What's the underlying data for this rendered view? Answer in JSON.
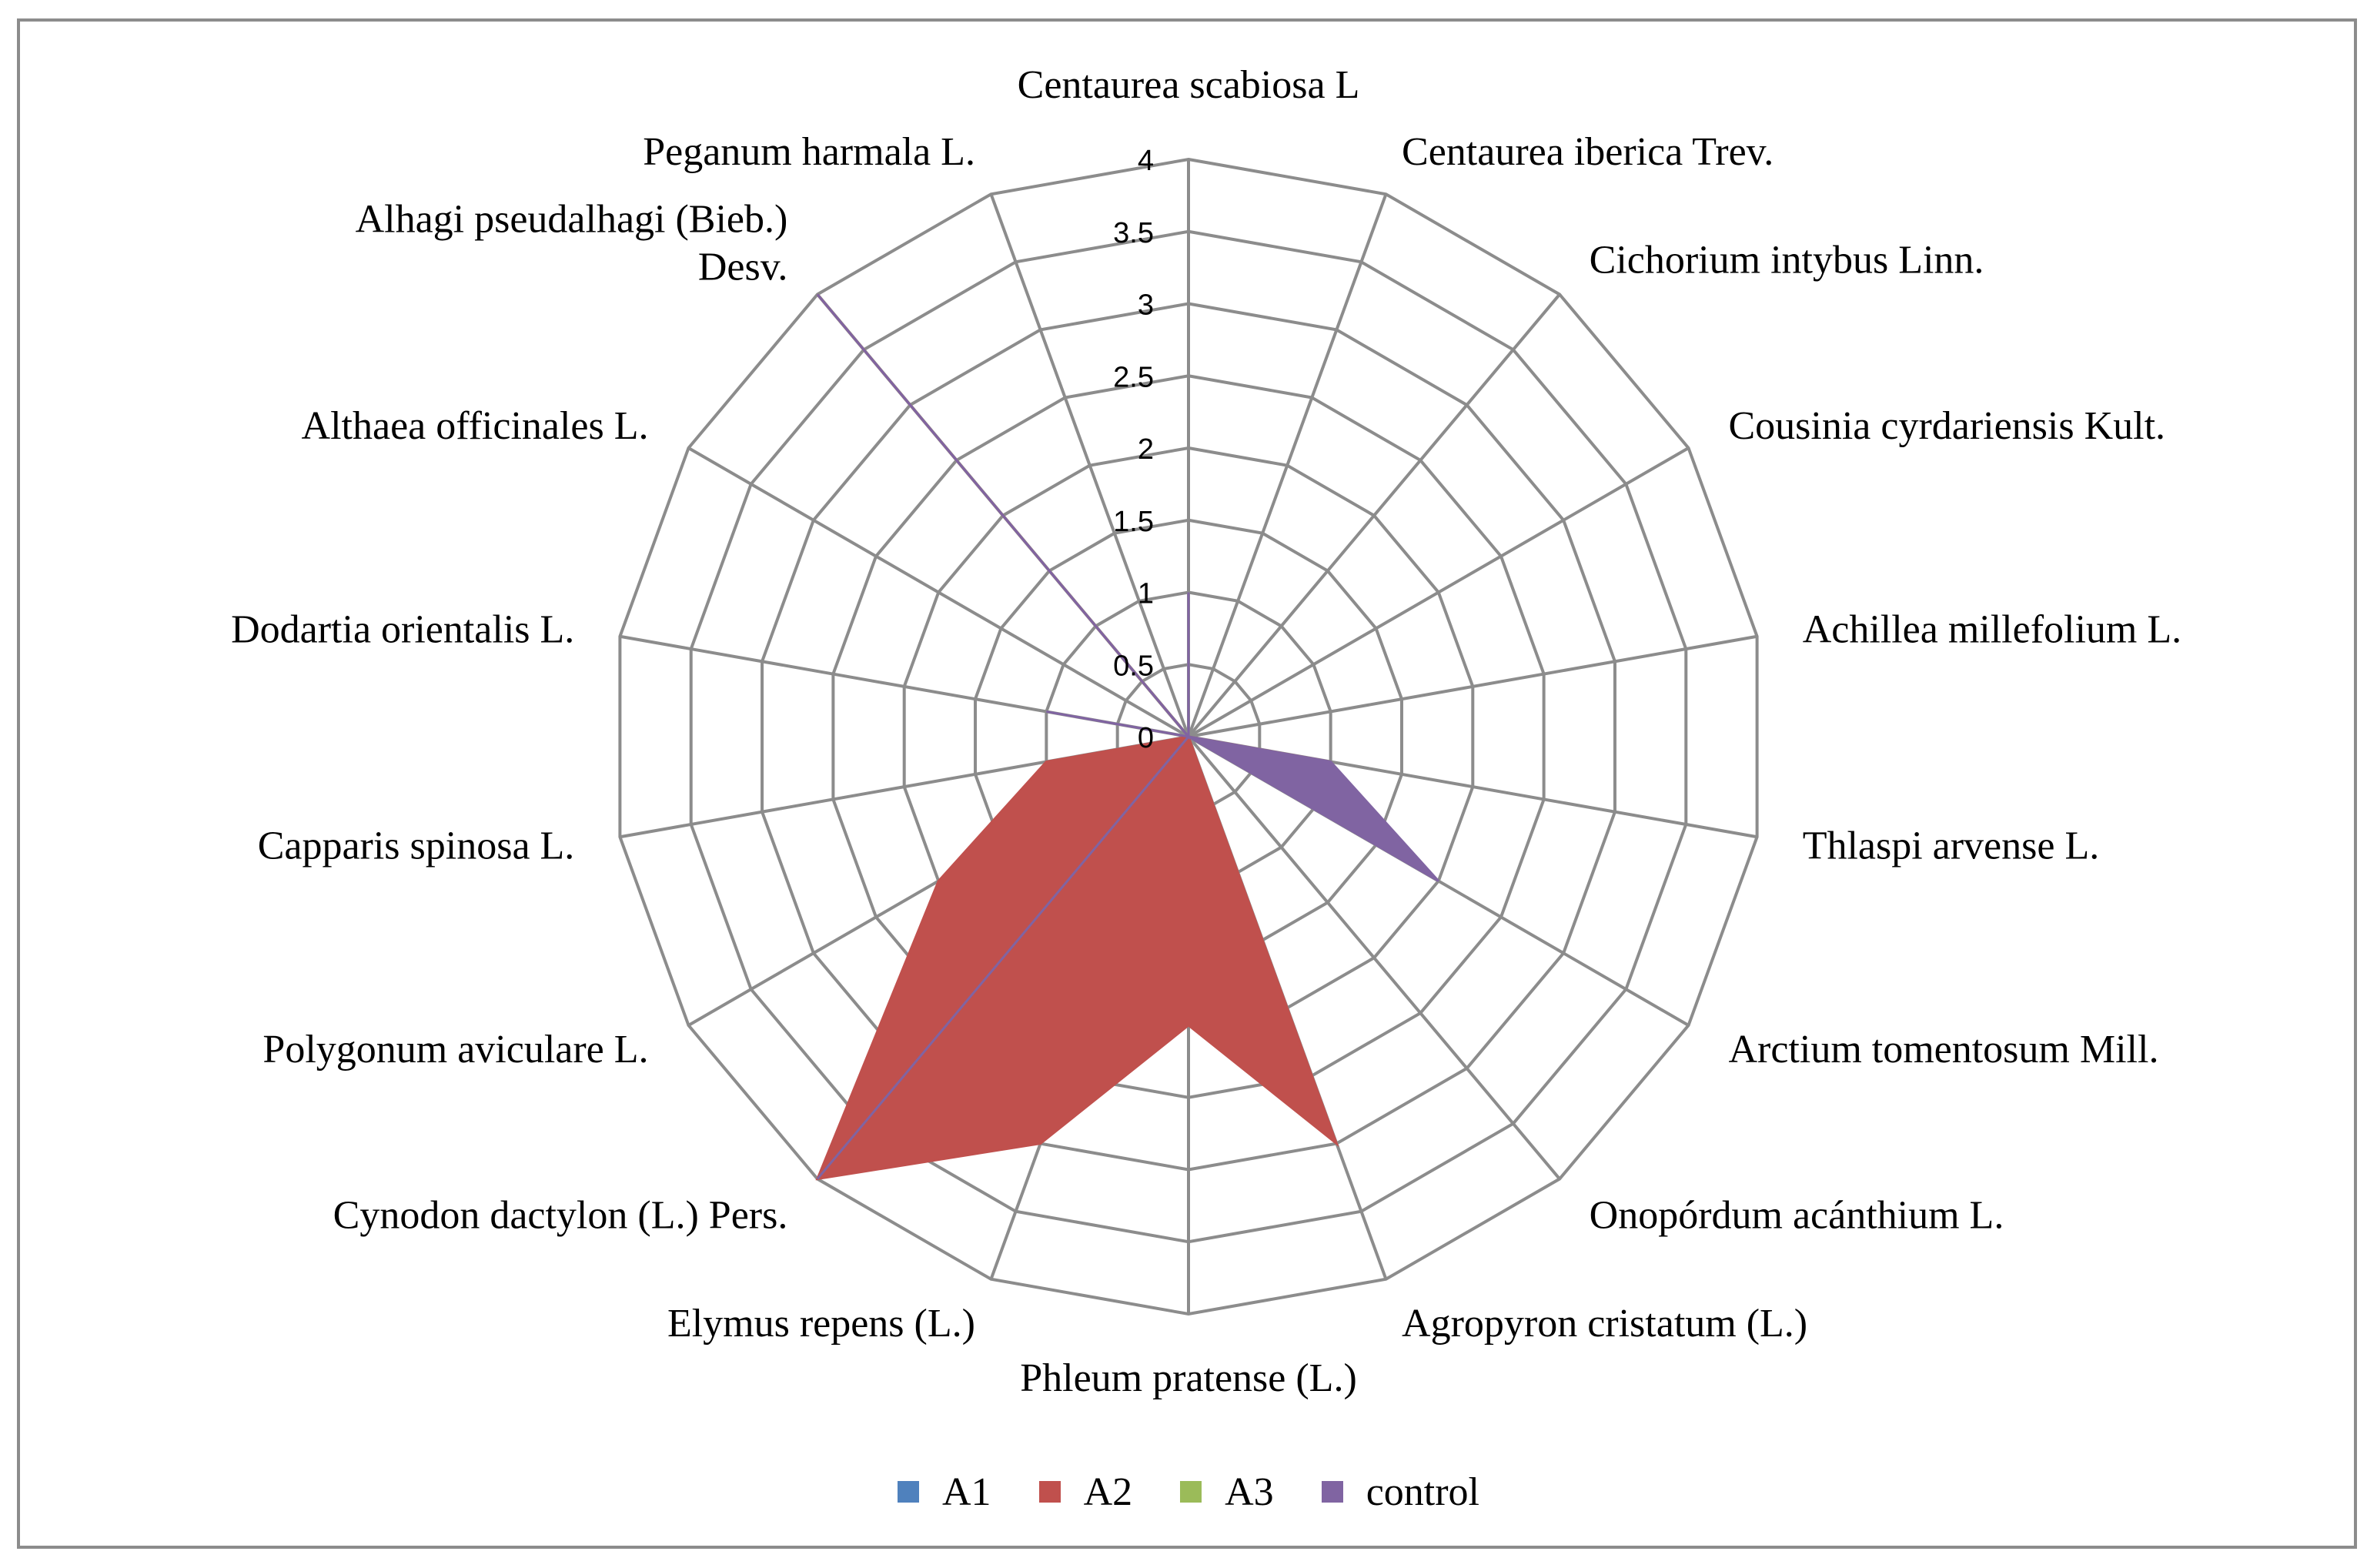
{
  "chart_data": {
    "type": "radar",
    "categories": [
      "Centaurea scabiosa L",
      "Centaurea iberica Trev.",
      "Cichorium intybus Linn.",
      "Cousinia cyrdariensis Kult.",
      "Achillea millefolium L.",
      "Thlaspi arvense L.",
      "Arctium tomentosum Mill.",
      "Onopórdum acánthium L.",
      "Agropyron cristatum (L.)",
      "Phleum pratense (L.)",
      "Elymus repens (L.)",
      "Cynodon dactylon (L.) Pers.",
      "Polygonum aviculare L.",
      "Capparis spinosa L.",
      "Dodartia orientalis L.",
      "Althaea officinales L.",
      "Alhagi pseudalhagi (Bieb.) Desv.",
      "Peganum harmala L."
    ],
    "category_lines": [
      [
        "Centaurea scabiosa L"
      ],
      [
        "Centaurea iberica Trev."
      ],
      [
        "Cichorium intybus Linn."
      ],
      [
        "Cousinia cyrdariensis Kult."
      ],
      [
        "Achillea millefolium L."
      ],
      [
        "Thlaspi arvense L."
      ],
      [
        "Arctium tomentosum Mill."
      ],
      [
        "Onopórdum acánthium L."
      ],
      [
        "Agropyron cristatum (L.)"
      ],
      [
        "Phleum pratense (L.)"
      ],
      [
        "Elymus repens (L.)"
      ],
      [
        "Cynodon dactylon (L.) Pers."
      ],
      [
        "Polygonum aviculare L."
      ],
      [
        "Capparis spinosa L."
      ],
      [
        "Dodartia orientalis L."
      ],
      [
        "Althaea officinales L."
      ],
      [
        "Alhagi pseudalhagi (Bieb.)",
        "Desv."
      ],
      [
        "Peganum harmala L."
      ]
    ],
    "series": [
      {
        "name": "A1",
        "color": "#4F81BD",
        "values": [
          0,
          0,
          0,
          0,
          0,
          0,
          0,
          0,
          0,
          0,
          0,
          0,
          0,
          0,
          0,
          0,
          0,
          0
        ]
      },
      {
        "name": "A2",
        "color": "#C0504D",
        "values": [
          0,
          0,
          0,
          0,
          0,
          1,
          0,
          0,
          3,
          2,
          3,
          4,
          2,
          1,
          0,
          0,
          4,
          0
        ]
      },
      {
        "name": "A3",
        "color": "#9BBB59",
        "values": [
          0,
          0,
          0,
          0,
          0,
          0,
          0,
          0,
          0,
          0,
          0,
          0,
          0,
          0,
          0,
          0,
          0,
          0
        ]
      },
      {
        "name": "control",
        "color": "#8064A2",
        "values": [
          1,
          0,
          0,
          0,
          0,
          1,
          2,
          0,
          0,
          0,
          0,
          4,
          0,
          0,
          1,
          0,
          4,
          0
        ]
      }
    ],
    "radial_ticks": [
      "0",
      "0.5",
      "1",
      "1.5",
      "2",
      "2.5",
      "3",
      "3.5",
      "4"
    ],
    "rmax": 4,
    "grid": true,
    "legend": "bottom"
  }
}
